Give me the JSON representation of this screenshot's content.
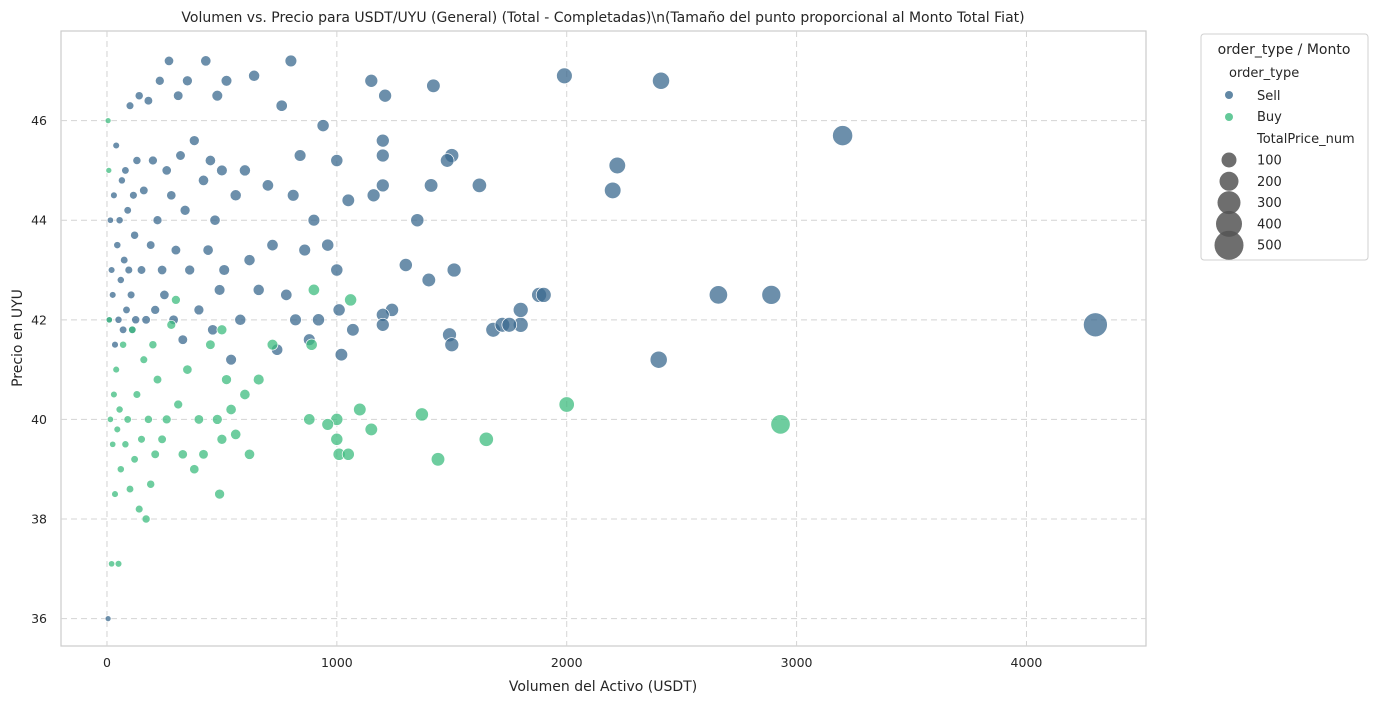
{
  "chart_data": {
    "type": "scatter",
    "title": "Volumen vs. Precio para USDT/UYU (General) (Total - Completadas)\\n(Tamaño del punto proporcional al Monto Total Fiat)",
    "xlabel": "Volumen del Activo (USDT)",
    "ylabel": "Precio en UYU",
    "xlim": [
      -200,
      4520
    ],
    "ylim": [
      35.45,
      47.8
    ],
    "xticks": [
      0,
      1000,
      2000,
      3000,
      4000
    ],
    "yticks": [
      36,
      38,
      40,
      42,
      44,
      46
    ],
    "grid": true,
    "legend_position": "outside-right",
    "legend": {
      "title": "order_type / Monto",
      "hue_title": "order_type",
      "size_title": "TotalPrice_num",
      "size_entries": [
        "100",
        "200",
        "300",
        "400",
        "500"
      ]
    },
    "size_scale": {
      "min_value": 0,
      "max_value": 500
    },
    "colors": {
      "Sell": "#3b6a8f",
      "Buy": "#3dbc7f"
    },
    "series": [
      {
        "name": "Sell",
        "points": [
          [
            5,
            36.0,
            3
          ],
          [
            10,
            42.0,
            4
          ],
          [
            15,
            44.0,
            4
          ],
          [
            20,
            43.0,
            5
          ],
          [
            25,
            42.5,
            5
          ],
          [
            30,
            44.5,
            5
          ],
          [
            35,
            41.5,
            5
          ],
          [
            40,
            45.5,
            5
          ],
          [
            45,
            43.5,
            6
          ],
          [
            50,
            42.0,
            6
          ],
          [
            55,
            44.0,
            6
          ],
          [
            60,
            42.8,
            6
          ],
          [
            65,
            44.8,
            6
          ],
          [
            70,
            41.8,
            7
          ],
          [
            75,
            43.2,
            7
          ],
          [
            80,
            45.0,
            7
          ],
          [
            85,
            42.2,
            7
          ],
          [
            90,
            44.2,
            7
          ],
          [
            95,
            43.0,
            8
          ],
          [
            100,
            46.3,
            8
          ],
          [
            105,
            42.5,
            8
          ],
          [
            110,
            41.8,
            8
          ],
          [
            115,
            44.5,
            8
          ],
          [
            120,
            43.7,
            9
          ],
          [
            125,
            42.0,
            9
          ],
          [
            130,
            45.2,
            9
          ],
          [
            140,
            46.5,
            9
          ],
          [
            150,
            43.0,
            10
          ],
          [
            160,
            44.6,
            10
          ],
          [
            170,
            42.0,
            10
          ],
          [
            180,
            46.4,
            10
          ],
          [
            190,
            43.5,
            10
          ],
          [
            200,
            45.2,
            11
          ],
          [
            210,
            42.2,
            11
          ],
          [
            220,
            44.0,
            11
          ],
          [
            230,
            46.8,
            11
          ],
          [
            240,
            43.0,
            12
          ],
          [
            250,
            42.5,
            12
          ],
          [
            260,
            45.0,
            12
          ],
          [
            270,
            47.2,
            12
          ],
          [
            280,
            44.5,
            12
          ],
          [
            290,
            42.0,
            13
          ],
          [
            300,
            43.4,
            13
          ],
          [
            310,
            46.5,
            13
          ],
          [
            320,
            45.3,
            13
          ],
          [
            330,
            41.6,
            13
          ],
          [
            340,
            44.2,
            14
          ],
          [
            350,
            46.8,
            14
          ],
          [
            360,
            43.0,
            14
          ],
          [
            380,
            45.6,
            14
          ],
          [
            400,
            42.2,
            14
          ],
          [
            420,
            44.8,
            15
          ],
          [
            430,
            47.2,
            15
          ],
          [
            440,
            43.4,
            15
          ],
          [
            450,
            45.2,
            15
          ],
          [
            460,
            41.8,
            15
          ],
          [
            470,
            44.0,
            15
          ],
          [
            480,
            46.5,
            16
          ],
          [
            490,
            42.6,
            16
          ],
          [
            500,
            45.0,
            16
          ],
          [
            510,
            43.0,
            16
          ],
          [
            520,
            46.8,
            16
          ],
          [
            540,
            41.2,
            16
          ],
          [
            560,
            44.5,
            17
          ],
          [
            580,
            42.0,
            17
          ],
          [
            600,
            45.0,
            17
          ],
          [
            620,
            43.2,
            17
          ],
          [
            640,
            46.9,
            17
          ],
          [
            660,
            42.6,
            17
          ],
          [
            700,
            44.7,
            18
          ],
          [
            720,
            43.5,
            18
          ],
          [
            740,
            41.4,
            18
          ],
          [
            760,
            46.3,
            18
          ],
          [
            780,
            42.5,
            18
          ],
          [
            800,
            47.2,
            19
          ],
          [
            810,
            44.5,
            19
          ],
          [
            820,
            42.0,
            19
          ],
          [
            840,
            45.3,
            19
          ],
          [
            860,
            43.4,
            19
          ],
          [
            880,
            41.6,
            19
          ],
          [
            900,
            44.0,
            19
          ],
          [
            920,
            42.0,
            20
          ],
          [
            940,
            45.9,
            20
          ],
          [
            960,
            43.5,
            20
          ],
          [
            1000,
            43.0,
            20
          ],
          [
            1000,
            45.2,
            20
          ],
          [
            1010,
            42.2,
            20
          ],
          [
            1020,
            41.3,
            21
          ],
          [
            1050,
            44.4,
            21
          ],
          [
            1070,
            41.8,
            21
          ],
          [
            1150,
            46.8,
            22
          ],
          [
            1160,
            44.5,
            22
          ],
          [
            1200,
            45.6,
            22
          ],
          [
            1200,
            45.3,
            22
          ],
          [
            1200,
            44.7,
            22
          ],
          [
            1200,
            42.1,
            22
          ],
          [
            1200,
            41.9,
            22
          ],
          [
            1210,
            46.5,
            22
          ],
          [
            1240,
            42.2,
            23
          ],
          [
            1300,
            43.1,
            23
          ],
          [
            1350,
            44.0,
            23
          ],
          [
            1400,
            42.8,
            24
          ],
          [
            1410,
            44.7,
            24
          ],
          [
            1420,
            46.7,
            24
          ],
          [
            1480,
            45.2,
            24
          ],
          [
            1490,
            41.7,
            25
          ],
          [
            1500,
            41.5,
            25
          ],
          [
            1500,
            45.3,
            25
          ],
          [
            1510,
            43.0,
            25
          ],
          [
            1620,
            44.7,
            26
          ],
          [
            1680,
            41.8,
            27
          ],
          [
            1720,
            41.9,
            27
          ],
          [
            1750,
            41.9,
            27
          ],
          [
            1800,
            41.9,
            28
          ],
          [
            1800,
            42.2,
            28
          ],
          [
            1880,
            42.5,
            28
          ],
          [
            1900,
            42.5,
            28
          ],
          [
            1990,
            46.9,
            30
          ],
          [
            2200,
            44.6,
            32
          ],
          [
            2220,
            45.1,
            32
          ],
          [
            2400,
            41.2,
            34
          ],
          [
            2410,
            46.8,
            34
          ],
          [
            2660,
            42.5,
            37
          ],
          [
            2890,
            42.5,
            39
          ],
          [
            3200,
            45.7,
            42
          ],
          [
            4300,
            41.9,
            53
          ]
        ]
      },
      {
        "name": "Buy",
        "points": [
          [
            5,
            46.0,
            3
          ],
          [
            8,
            45.0,
            3
          ],
          [
            10,
            42.0,
            4
          ],
          [
            15,
            40.0,
            4
          ],
          [
            20,
            37.1,
            4
          ],
          [
            25,
            39.5,
            4
          ],
          [
            30,
            40.5,
            5
          ],
          [
            35,
            38.5,
            5
          ],
          [
            40,
            41.0,
            5
          ],
          [
            45,
            39.8,
            5
          ],
          [
            50,
            37.1,
            5
          ],
          [
            55,
            40.2,
            6
          ],
          [
            60,
            39.0,
            6
          ],
          [
            70,
            41.5,
            6
          ],
          [
            80,
            39.5,
            6
          ],
          [
            90,
            40.0,
            7
          ],
          [
            100,
            38.6,
            7
          ],
          [
            110,
            41.8,
            7
          ],
          [
            120,
            39.2,
            7
          ],
          [
            130,
            40.5,
            8
          ],
          [
            140,
            38.2,
            8
          ],
          [
            150,
            39.6,
            8
          ],
          [
            160,
            41.2,
            8
          ],
          [
            170,
            38.0,
            9
          ],
          [
            180,
            40.0,
            9
          ],
          [
            190,
            38.7,
            9
          ],
          [
            200,
            41.5,
            9
          ],
          [
            210,
            39.3,
            10
          ],
          [
            220,
            40.8,
            10
          ],
          [
            240,
            39.6,
            10
          ],
          [
            260,
            40.0,
            11
          ],
          [
            280,
            41.9,
            11
          ],
          [
            300,
            42.4,
            11
          ],
          [
            310,
            40.3,
            11
          ],
          [
            330,
            39.3,
            12
          ],
          [
            350,
            41.0,
            12
          ],
          [
            380,
            39.0,
            12
          ],
          [
            400,
            40.0,
            13
          ],
          [
            420,
            39.3,
            13
          ],
          [
            450,
            41.5,
            13
          ],
          [
            480,
            40.0,
            14
          ],
          [
            490,
            38.5,
            14
          ],
          [
            500,
            41.8,
            14
          ],
          [
            500,
            39.6,
            14
          ],
          [
            520,
            40.8,
            14
          ],
          [
            540,
            40.2,
            15
          ],
          [
            560,
            39.7,
            15
          ],
          [
            600,
            40.5,
            15
          ],
          [
            620,
            39.3,
            15
          ],
          [
            660,
            40.8,
            16
          ],
          [
            720,
            41.5,
            16
          ],
          [
            880,
            40.0,
            18
          ],
          [
            890,
            41.5,
            18
          ],
          [
            900,
            42.6,
            18
          ],
          [
            960,
            39.9,
            19
          ],
          [
            1000,
            39.6,
            20
          ],
          [
            1000,
            40.0,
            20
          ],
          [
            1010,
            39.3,
            20
          ],
          [
            1050,
            39.3,
            20
          ],
          [
            1060,
            42.4,
            20
          ],
          [
            1100,
            40.2,
            21
          ],
          [
            1150,
            39.8,
            21
          ],
          [
            1370,
            40.1,
            23
          ],
          [
            1440,
            39.2,
            24
          ],
          [
            1650,
            39.6,
            26
          ],
          [
            2000,
            40.3,
            29
          ],
          [
            2930,
            39.9,
            40
          ]
        ]
      }
    ]
  }
}
